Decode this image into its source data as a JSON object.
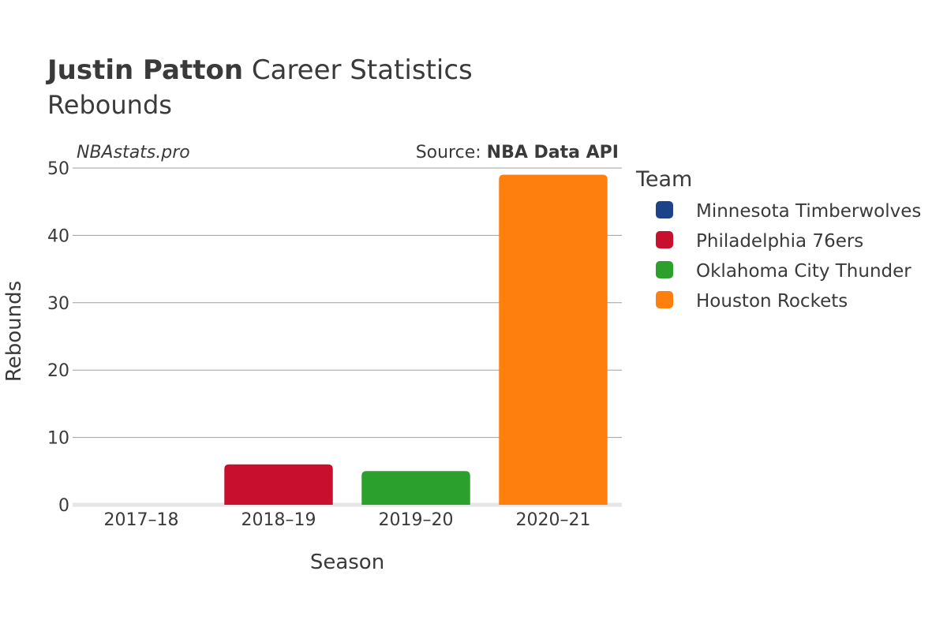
{
  "header": {
    "player_name": "Justin Patton",
    "title_rest": " Career Statistics",
    "subtitle": "Rebounds"
  },
  "annotations": {
    "site": "NBAstats.pro",
    "source_prefix": "Source: ",
    "source_name": "NBA Data API"
  },
  "legend": {
    "title": "Team",
    "position": "right",
    "items": [
      {
        "label": "Minnesota Timberwolves",
        "color": "#1d428a"
      },
      {
        "label": "Philadelphia 76ers",
        "color": "#c8102e"
      },
      {
        "label": "Oklahoma City Thunder",
        "color": "#2ca02c"
      },
      {
        "label": "Houston Rockets",
        "color": "#ff7f0e"
      }
    ]
  },
  "chart_data": {
    "type": "bar",
    "xlabel": "Season",
    "ylabel": "Rebounds",
    "categories": [
      "2017–18",
      "2018–19",
      "2019–20",
      "2020–21"
    ],
    "ylim": [
      0,
      50
    ],
    "yticks": [
      0,
      10,
      20,
      30,
      40,
      50
    ],
    "grid": true,
    "series": [
      {
        "name": "Minnesota Timberwolves",
        "color": "#1d428a",
        "values": [
          0,
          null,
          null,
          null
        ]
      },
      {
        "name": "Philadelphia 76ers",
        "color": "#c8102e",
        "values": [
          null,
          6,
          null,
          null
        ]
      },
      {
        "name": "Oklahoma City Thunder",
        "color": "#2ca02c",
        "values": [
          null,
          null,
          5,
          null
        ]
      },
      {
        "name": "Houston Rockets",
        "color": "#ff7f0e",
        "values": [
          null,
          null,
          null,
          49
        ]
      }
    ]
  }
}
